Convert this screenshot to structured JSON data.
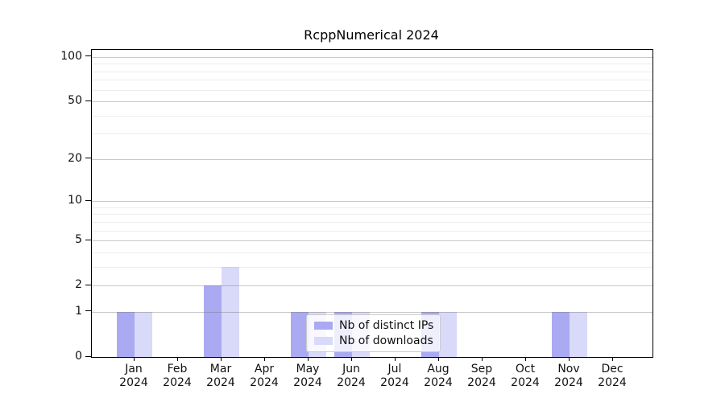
{
  "title": "RcppNumerical 2024",
  "colors": {
    "ips": "#aaaaf2",
    "downloads": "#d9d9f9",
    "axis": "#000000",
    "grid_major": "#c8c8c8",
    "grid_minor": "#e9e9e9",
    "legend_border": "#cccccc",
    "background": "#ffffff"
  },
  "legend": {
    "items": [
      {
        "label": "Nb of distinct IPs",
        "color_key": "ips"
      },
      {
        "label": "Nb of downloads",
        "color_key": "downloads"
      }
    ]
  },
  "y_axis": {
    "tick_labels": [
      "0",
      "1",
      "2",
      "5",
      "10",
      "20",
      "50",
      "100"
    ]
  },
  "chart_data": {
    "type": "bar",
    "title": "RcppNumerical 2024",
    "categories": [
      "Jan 2024",
      "Feb 2024",
      "Mar 2024",
      "Apr 2024",
      "May 2024",
      "Jun 2024",
      "Jul 2024",
      "Aug 2024",
      "Sep 2024",
      "Oct 2024",
      "Nov 2024",
      "Dec 2024"
    ],
    "series": [
      {
        "name": "Nb of distinct IPs",
        "values": [
          1,
          0,
          2,
          0,
          1,
          1,
          0,
          1,
          0,
          0,
          1,
          0
        ]
      },
      {
        "name": "Nb of downloads",
        "values": [
          1,
          0,
          3,
          0,
          1,
          1,
          0,
          1,
          0,
          0,
          1,
          0
        ]
      }
    ],
    "xlabel": "",
    "ylabel": "",
    "yscale": "log1p",
    "ylim": [
      0,
      115
    ],
    "ytick_values": [
      0,
      1,
      2,
      5,
      10,
      20,
      50,
      100
    ],
    "minor_grid_values": [
      3,
      4,
      6,
      7,
      8,
      9,
      30,
      40,
      60,
      70,
      80,
      90
    ],
    "grid": "on",
    "legend_position": "lower-center-inside"
  }
}
